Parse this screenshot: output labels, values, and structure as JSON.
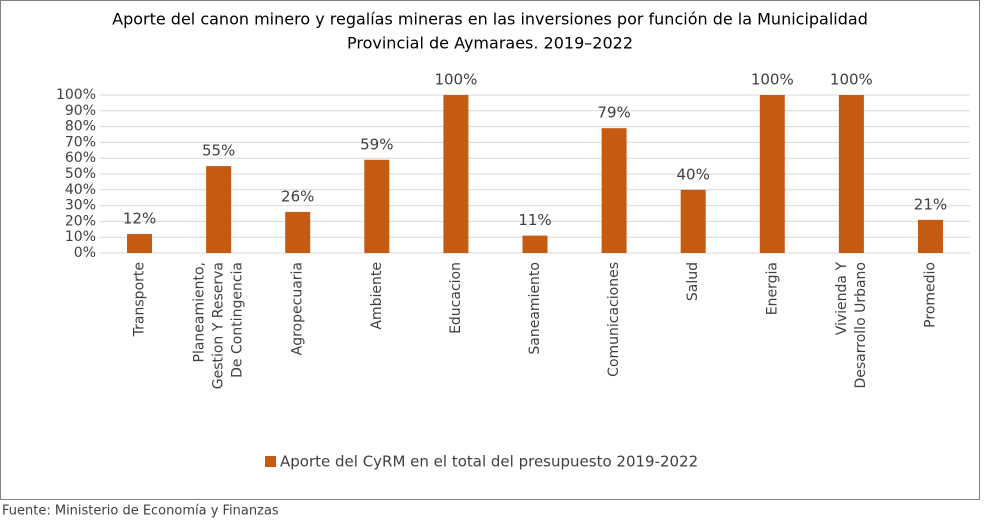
{
  "chart_data": {
    "type": "bar",
    "title": [
      "Aporte del canon minero y regalías mineras en las inversiones por función de la Municipalidad",
      "Provincial de Aymaraes. 2019–2022"
    ],
    "categories": [
      "Transporte",
      "Planeamiento, Gestion Y Reserva De Contingencia",
      "Agropecuaria",
      "Ambiente",
      "Educacion",
      "Saneamiento",
      "Comunicaciones",
      "Salud",
      "Energia",
      "Vivienda Y Desarrollo Urbano",
      "Promedio"
    ],
    "series": [
      {
        "name": "Aporte del CyRM en el total del presupuesto 2019-2022",
        "color": "#c55a11",
        "values": [
          12,
          55,
          26,
          59,
          100,
          11,
          79,
          40,
          100,
          100,
          21
        ],
        "value_labels": [
          "12%",
          "55%",
          "26%",
          "59%",
          "100%",
          "11%",
          "79%",
          "40%",
          "100%",
          "100%",
          "21%"
        ]
      }
    ],
    "ylim": [
      0,
      100
    ],
    "yticks": [
      {
        "value": 0,
        "label": "0%"
      },
      {
        "value": 10,
        "label": "10%"
      },
      {
        "value": 20,
        "label": "20%"
      },
      {
        "value": 30,
        "label": "30%"
      },
      {
        "value": 40,
        "label": "40%"
      },
      {
        "value": 50,
        "label": "50%"
      },
      {
        "value": 60,
        "label": "60%"
      },
      {
        "value": 70,
        "label": "70%"
      },
      {
        "value": 80,
        "label": "80%"
      },
      {
        "value": 90,
        "label": "90%"
      },
      {
        "value": 100,
        "label": "100%"
      }
    ],
    "grid": true,
    "legend": "bottom",
    "source": "Fuente: Ministerio de Economía y Finanzas"
  }
}
